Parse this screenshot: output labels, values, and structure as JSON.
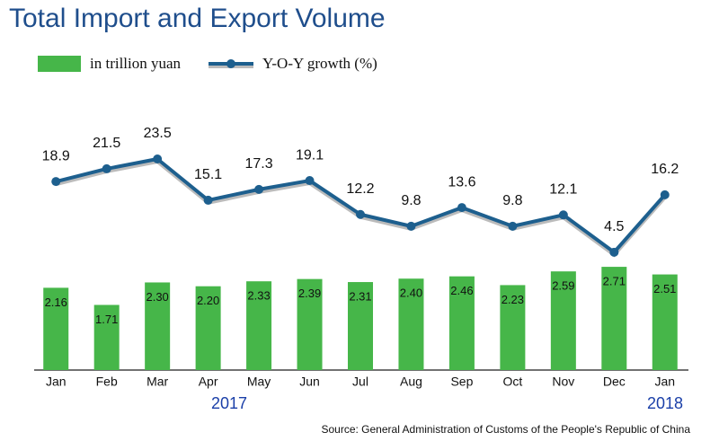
{
  "chart_data": {
    "type": "bar-line",
    "title": "Total Import and Export Volume",
    "categories": [
      "Jan",
      "Feb",
      "Mar",
      "Apr",
      "May",
      "Jun",
      "Jul",
      "Aug",
      "Sep",
      "Oct",
      "Nov",
      "Dec",
      "Jan"
    ],
    "series": [
      {
        "name": "in trillion yuan",
        "color": "#46b649",
        "type": "bar",
        "values": [
          2.16,
          1.71,
          2.3,
          2.2,
          2.33,
          2.39,
          2.31,
          2.4,
          2.46,
          2.23,
          2.59,
          2.71,
          2.51
        ],
        "value_labels": [
          "2.16",
          "1.71",
          "2.30",
          "2.20",
          "2.33",
          "2.39",
          "2.31",
          "2.40",
          "2.46",
          "2.23",
          "2.59",
          "2.71",
          "2.51"
        ]
      },
      {
        "name": "Y-O-Y growth (%)",
        "color": "#1d5f8e",
        "type": "line",
        "axis": "y2",
        "values": [
          18.9,
          21.5,
          23.5,
          15.1,
          17.3,
          19.1,
          12.2,
          9.8,
          13.6,
          9.8,
          12.1,
          4.5,
          16.2
        ]
      }
    ],
    "ylim": [
      0,
      6.65
    ],
    "y2lim": [
      -19.5,
      32.1
    ],
    "annotations": [
      "2017",
      "2018"
    ],
    "source": "Source: General Administration of Customs of the People's Republic of China"
  }
}
